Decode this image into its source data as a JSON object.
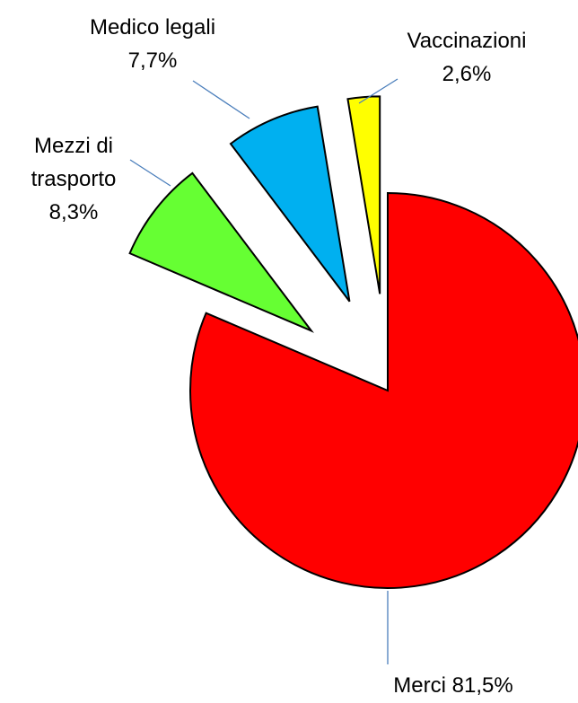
{
  "chart_data": {
    "type": "pie",
    "categories": [
      "Merci",
      "Mezzi di trasporto",
      "Medico legali",
      "Vaccinazioni"
    ],
    "values": [
      81.5,
      8.3,
      7.7,
      2.6
    ],
    "value_labels": [
      "81,5%",
      "8,3%",
      "7,7%",
      "2,6%"
    ],
    "colors": [
      "#ff0000",
      "#66ff33",
      "#00b0f0",
      "#ffff00"
    ]
  }
}
